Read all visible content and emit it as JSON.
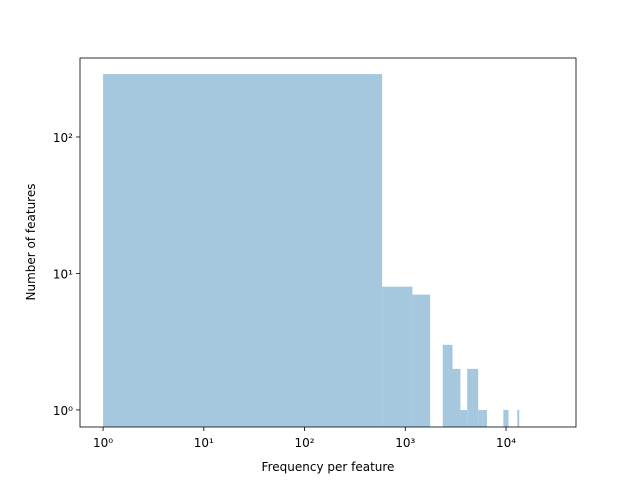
{
  "chart_data": {
    "type": "histogram",
    "xlabel": "Frequency per feature",
    "ylabel": "Number of features",
    "bins": [
      1,
      589,
      1177,
      1765,
      2353,
      2941,
      3529,
      4117,
      4705,
      5293,
      5881,
      6469,
      7057,
      7645,
      8233,
      8821,
      9409,
      9997,
      10585,
      11173,
      11761,
      12349,
      12937,
      13525
    ],
    "values": [
      289,
      8,
      7,
      0,
      3,
      2,
      1,
      2,
      2,
      1,
      1,
      0,
      0,
      0,
      0,
      0,
      1,
      1,
      0,
      0,
      0,
      0,
      1
    ],
    "color": "#a6c8df",
    "xscale": "log",
    "yscale": "log",
    "xlim": [
      0.59,
      49500
    ],
    "ylim": [
      0.75,
      379
    ],
    "xticks": [
      {
        "value": 1,
        "label": "10⁰"
      },
      {
        "value": 10,
        "label": "10¹"
      },
      {
        "value": 100,
        "label": "10²"
      },
      {
        "value": 1000,
        "label": "10³"
      },
      {
        "value": 10000,
        "label": "10⁴"
      }
    ],
    "yticks": [
      {
        "value": 1,
        "label": "10⁰"
      },
      {
        "value": 10,
        "label": "10¹"
      },
      {
        "value": 100,
        "label": "10²"
      }
    ]
  }
}
